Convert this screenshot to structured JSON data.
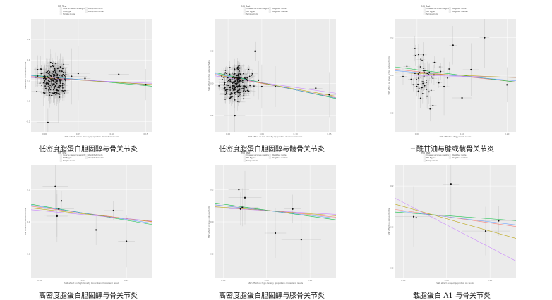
{
  "legend": {
    "title": "MR Test",
    "entries": [
      {
        "label": "Inverse variance weighted",
        "color": "#f8766d"
      },
      {
        "label": "Weighted mode",
        "color": "#b79f00"
      },
      {
        "label": "MR Egger",
        "color": "#00ba38"
      },
      {
        "label": "Weighted median",
        "color": "#619cff"
      },
      {
        "label": "Simple mode",
        "color": "#c77cff"
      }
    ]
  },
  "chart_data": [
    {
      "type": "scatter",
      "caption": "低密度脂蛋白胆固醇与骨关节炎",
      "xlabel": "SNP effect on low density lipoprotein cholesterol levels",
      "ylabel": "SNP effect on osteoarthritis",
      "xlim": [
        -0.02,
        0.16
      ],
      "ylim": [
        -0.25,
        0.3
      ],
      "xticks": [
        0.0,
        0.05,
        0.1,
        0.15
      ],
      "yticks": [
        -0.2,
        -0.1,
        0.0,
        0.1,
        0.2
      ],
      "cloud": {
        "n": 180,
        "x_center": 0.012,
        "x_spread": 0.014,
        "y_spread": 0.055
      },
      "points": [
        {
          "x": 0.005,
          "y": -0.205
        },
        {
          "x": 0.018,
          "y": -0.06
        },
        {
          "x": 0.02,
          "y": -0.065
        },
        {
          "x": 0.04,
          "y": 0.02
        },
        {
          "x": 0.05,
          "y": 0.035
        },
        {
          "x": 0.06,
          "y": 0.01
        },
        {
          "x": 0.11,
          "y": 0.03
        },
        {
          "x": 0.15,
          "y": -0.02
        }
      ],
      "lines": [
        {
          "name": "Inverse variance weighted",
          "slope": -0.22,
          "intercept": 0.015
        },
        {
          "name": "MR Egger",
          "slope": -0.3,
          "intercept": 0.02
        },
        {
          "name": "Weighted median",
          "slope": -0.25,
          "intercept": 0.018
        },
        {
          "name": "Weighted mode",
          "slope": -0.2,
          "intercept": 0.012
        },
        {
          "name": "Simple mode",
          "slope": -0.15,
          "intercept": 0.01
        }
      ]
    },
    {
      "type": "scatter",
      "caption": "低密度脂蛋白胆固醇与髋骨关节炎",
      "xlabel": "SNP effect on low density lipoprotein cholesterol levels",
      "ylabel": "SNP effect on hip osteoarthritis",
      "xlim": [
        -0.02,
        0.16
      ],
      "ylim": [
        -0.3,
        0.4
      ],
      "xticks": [
        0.0,
        0.05,
        0.1,
        0.15
      ],
      "yticks": [
        -0.2,
        0.0,
        0.2
      ],
      "cloud": {
        "n": 200,
        "x_center": 0.012,
        "x_spread": 0.014,
        "y_spread": 0.07
      },
      "points": [
        {
          "x": 0.04,
          "y": 0.2
        },
        {
          "x": 0.045,
          "y": 0.02
        },
        {
          "x": 0.05,
          "y": -0.02
        },
        {
          "x": 0.07,
          "y": -0.02
        },
        {
          "x": 0.13,
          "y": -0.03
        },
        {
          "x": 0.15,
          "y": -0.07
        },
        {
          "x": 0.01,
          "y": -0.2
        }
      ],
      "lines": [
        {
          "name": "Inverse variance weighted",
          "slope": -0.8,
          "intercept": 0.04
        },
        {
          "name": "MR Egger",
          "slope": -0.9,
          "intercept": 0.05
        },
        {
          "name": "Weighted median",
          "slope": -0.85,
          "intercept": 0.045
        },
        {
          "name": "Weighted mode",
          "slope": -0.75,
          "intercept": 0.04
        },
        {
          "name": "Simple mode",
          "slope": -0.6,
          "intercept": 0.035
        }
      ]
    },
    {
      "type": "scatter",
      "caption": "三酰甘油与膝或髋骨关节炎",
      "xlabel": "SNP effect on Triglyceride levels",
      "ylabel": "SNP effect on knee or hip osteoarthritis",
      "xlim": [
        -0.05,
        0.22
      ],
      "ylim": [
        -0.3,
        0.3
      ],
      "xticks": [
        0.0,
        0.1,
        0.2
      ],
      "yticks": [
        -0.2,
        0.0,
        0.2
      ],
      "cloud": {
        "n": 55,
        "x_center": 0.02,
        "x_spread": 0.03,
        "y_spread": 0.1
      },
      "points": [
        {
          "x": 0.15,
          "y": 0.2
        },
        {
          "x": 0.08,
          "y": 0.16
        },
        {
          "x": 0.06,
          "y": -0.06
        },
        {
          "x": 0.1,
          "y": -0.12
        },
        {
          "x": 0.2,
          "y": -0.05
        },
        {
          "x": 0.12,
          "y": 0.03
        }
      ],
      "lines": [
        {
          "name": "Inverse variance weighted",
          "slope": -0.25,
          "intercept": 0.02
        },
        {
          "name": "MR Egger",
          "slope": -0.3,
          "intercept": 0.03
        },
        {
          "name": "Weighted median",
          "slope": -0.2,
          "intercept": 0.015
        },
        {
          "name": "Weighted mode",
          "slope": -0.1,
          "intercept": 0.01
        },
        {
          "name": "Simple mode",
          "slope": -0.05,
          "intercept": 0.0
        }
      ]
    },
    {
      "type": "scatter",
      "caption": "高密度脂蛋白胆固醇与骨关节炎",
      "xlabel": "SNP effect on high density lipoprotein cholesterol levels",
      "ylabel": "SNP effect on osteoarthritis",
      "xlim": [
        -0.01,
        0.13
      ],
      "ylim": [
        -0.35,
        0.35
      ],
      "xticks": [
        0.0,
        0.05,
        0.1
      ],
      "yticks": [
        -0.2,
        0.0,
        0.2
      ],
      "cloud": {
        "n": 0,
        "x_center": 0,
        "x_spread": 0,
        "y_spread": 0
      },
      "points": [
        {
          "x": 0.018,
          "y": 0.22
        },
        {
          "x": 0.025,
          "y": 0.13
        },
        {
          "x": 0.022,
          "y": 0.08
        },
        {
          "x": 0.02,
          "y": 0.035
        },
        {
          "x": 0.085,
          "y": 0.07
        },
        {
          "x": 0.065,
          "y": -0.05
        },
        {
          "x": 0.1,
          "y": -0.12
        },
        {
          "x": 0.02,
          "y": 0.04
        }
      ],
      "lines": [
        {
          "name": "Inverse variance weighted",
          "slope": -0.7,
          "intercept": 0.09
        },
        {
          "name": "MR Egger",
          "slope": -0.9,
          "intercept": 0.1
        },
        {
          "name": "Weighted median",
          "slope": -0.8,
          "intercept": 0.095
        },
        {
          "name": "Weighted mode",
          "slope": -0.6,
          "intercept": 0.08
        },
        {
          "name": "Simple mode",
          "slope": -0.5,
          "intercept": 0.07
        }
      ]
    },
    {
      "type": "scatter",
      "caption": "高密度脂蛋白胆固醇与膝骨关节炎",
      "xlabel": "SNP effect on high density lipoprotein cholesterol levels",
      "ylabel": "SNP effect on knee osteoarthritis",
      "xlim": [
        -0.01,
        0.13
      ],
      "ylim": [
        -0.35,
        0.35
      ],
      "xticks": [
        0.0,
        0.05,
        0.1
      ],
      "yticks": [
        -0.2,
        0.0,
        0.2
      ],
      "cloud": {
        "n": 0,
        "x_center": 0,
        "x_spread": 0,
        "y_spread": 0
      },
      "points": [
        {
          "x": 0.018,
          "y": 0.2
        },
        {
          "x": 0.025,
          "y": 0.15
        },
        {
          "x": 0.02,
          "y": 0.08
        },
        {
          "x": 0.022,
          "y": 0.09
        },
        {
          "x": 0.08,
          "y": 0.08
        },
        {
          "x": 0.06,
          "y": -0.07
        },
        {
          "x": 0.09,
          "y": -0.11
        }
      ],
      "lines": [
        {
          "name": "Inverse variance weighted",
          "slope": -0.55,
          "intercept": 0.1
        },
        {
          "name": "MR Egger",
          "slope": -0.75,
          "intercept": 0.11
        },
        {
          "name": "Weighted median",
          "slope": -0.6,
          "intercept": 0.1
        },
        {
          "name": "Weighted mode",
          "slope": -0.4,
          "intercept": 0.09
        },
        {
          "name": "Simple mode",
          "slope": -0.3,
          "intercept": 0.085
        }
      ]
    },
    {
      "type": "scatter",
      "caption": "载脂蛋白 A1 与骨关节炎",
      "xlabel": "SNP effect on apolipoprotein A1 levels",
      "ylabel": "SNP effect on osteoarthritis",
      "xlim": [
        -0.01,
        0.13
      ],
      "ylim": [
        -0.25,
        0.3
      ],
      "xticks": [
        0.0,
        0.05,
        0.1
      ],
      "yticks": [
        -0.2,
        0.0,
        0.2
      ],
      "cloud": {
        "n": 0,
        "x_center": 0,
        "x_spread": 0,
        "y_spread": 0
      },
      "points": [
        {
          "x": 0.055,
          "y": 0.21
        },
        {
          "x": 0.012,
          "y": 0.05
        },
        {
          "x": 0.015,
          "y": 0.045
        },
        {
          "x": 0.11,
          "y": 0.03
        },
        {
          "x": 0.095,
          "y": -0.02
        }
      ],
      "lines": [
        {
          "name": "Inverse variance weighted",
          "slope": -0.6,
          "intercept": 0.08
        },
        {
          "name": "MR Egger",
          "slope": -0.3,
          "intercept": 0.07
        },
        {
          "name": "Weighted median",
          "slope": -0.5,
          "intercept": 0.075
        },
        {
          "name": "Weighted mode",
          "slope": -1.2,
          "intercept": 0.1
        },
        {
          "name": "Simple mode",
          "slope": -2.2,
          "intercept": 0.12
        }
      ]
    }
  ]
}
